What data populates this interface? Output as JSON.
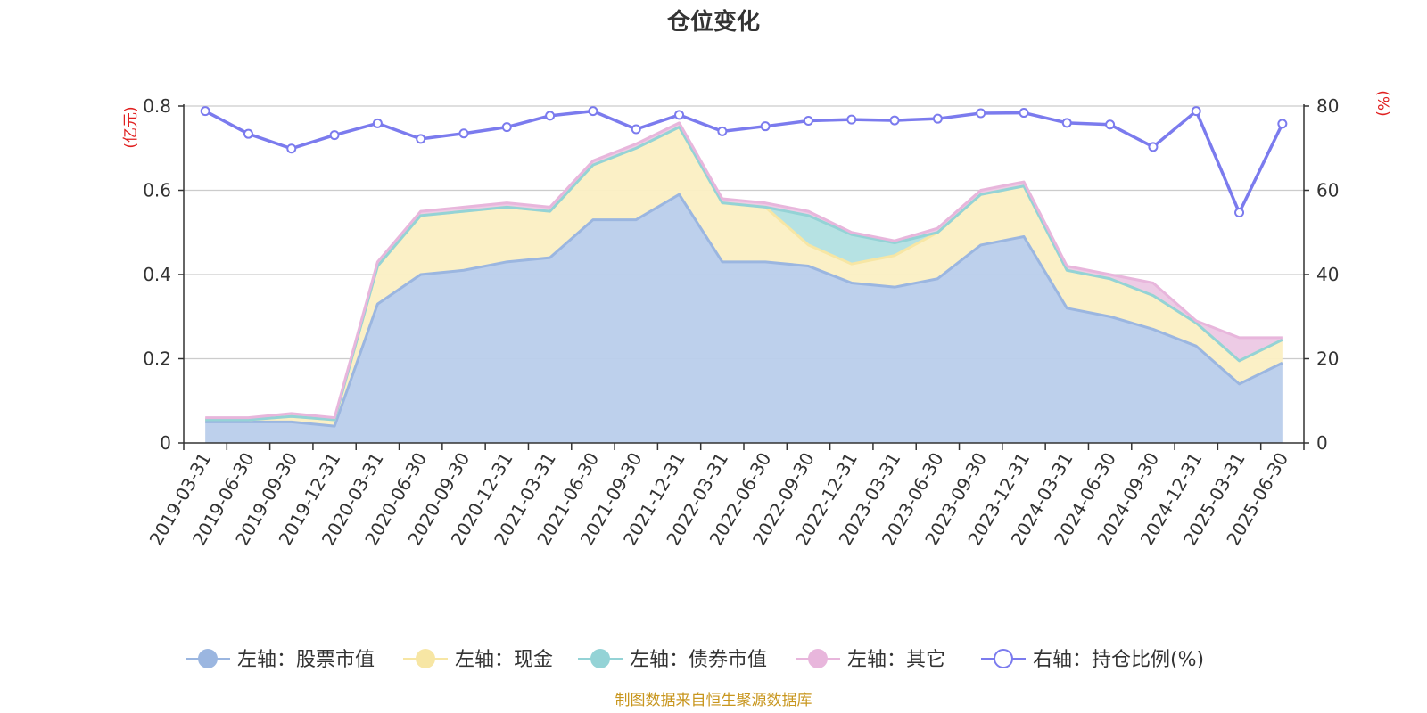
{
  "title": "仓位变化",
  "source": "制图数据来自恒生聚源数据库",
  "colors": {
    "stock": "#9bb6e0",
    "stock_fill": "#b9cdeb",
    "cash": "#f7e6a4",
    "cash_fill": "#fbefc3",
    "bond": "#94d3d6",
    "bond_fill": "#b2e0e2",
    "other": "#e8b6dc",
    "other_fill": "#ecc8e4",
    "ratio": "#7b7bee",
    "unit": "#e02020",
    "source": "#c8961e"
  },
  "chart_data": {
    "type": "area",
    "title": "仓位变化",
    "y_left": {
      "unit": "(亿元)",
      "range": [
        0,
        0.8
      ],
      "ticks": [
        "0",
        "0.2",
        "0.4",
        "0.6",
        "0.8"
      ]
    },
    "y_right": {
      "unit": "(%)",
      "range": [
        0,
        80
      ],
      "ticks": [
        "0",
        "20",
        "40",
        "60",
        "80"
      ]
    },
    "grid": true,
    "legend_position": "bottom",
    "categories": [
      "2019-03-31",
      "2019-06-30",
      "2019-09-30",
      "2019-12-31",
      "2020-03-31",
      "2020-06-30",
      "2020-09-30",
      "2020-12-31",
      "2021-03-31",
      "2021-06-30",
      "2021-09-30",
      "2021-12-31",
      "2022-03-31",
      "2022-06-30",
      "2022-09-30",
      "2022-12-31",
      "2023-03-31",
      "2023-06-30",
      "2023-09-30",
      "2023-12-31",
      "2024-03-31",
      "2024-06-30",
      "2024-09-30",
      "2024-12-31",
      "2025-03-31",
      "2025-06-30"
    ],
    "series": [
      {
        "name": "左轴：股票市值",
        "axis": "left",
        "stacked": true,
        "values": [
          0.05,
          0.05,
          0.05,
          0.04,
          0.33,
          0.4,
          0.41,
          0.43,
          0.44,
          0.53,
          0.53,
          0.59,
          0.43,
          0.43,
          0.42,
          0.38,
          0.37,
          0.39,
          0.47,
          0.49,
          0.32,
          0.3,
          0.27,
          0.23,
          0.14,
          0.19
        ]
      },
      {
        "name": "左轴：现金",
        "axis": "left",
        "stacked": true,
        "values": [
          0.005,
          0.005,
          0.013,
          0.015,
          0.09,
          0.14,
          0.14,
          0.13,
          0.11,
          0.13,
          0.17,
          0.16,
          0.14,
          0.13,
          0.05,
          0.045,
          0.075,
          0.11,
          0.12,
          0.12,
          0.09,
          0.09,
          0.08,
          0.055,
          0.055,
          0.055
        ]
      },
      {
        "name": "左轴：债券市值",
        "axis": "left",
        "stacked": true,
        "values": [
          0,
          0,
          0,
          0,
          0,
          0,
          0,
          0,
          0,
          0,
          0,
          0,
          0,
          0,
          0.07,
          0.07,
          0.03,
          0,
          0,
          0,
          0,
          0,
          0,
          0,
          0,
          0
        ]
      },
      {
        "name": "左轴：其它",
        "axis": "left",
        "stacked": true,
        "values": [
          0.005,
          0.005,
          0.007,
          0.005,
          0.01,
          0.01,
          0.01,
          0.01,
          0.01,
          0.01,
          0.01,
          0.01,
          0.01,
          0.01,
          0.01,
          0.005,
          0.005,
          0.01,
          0.01,
          0.01,
          0.01,
          0.01,
          0.03,
          0.005,
          0.055,
          0.005
        ]
      },
      {
        "name": "右轴：持仓比例(%)",
        "axis": "right",
        "type": "line",
        "values": [
          78.8,
          73.4,
          69.9,
          73.1,
          75.9,
          72.2,
          73.5,
          75.0,
          77.7,
          78.8,
          74.5,
          77.9,
          74.0,
          75.2,
          76.5,
          76.8,
          76.6,
          77.0,
          78.3,
          78.4,
          76.0,
          75.6,
          70.3,
          78.8,
          54.7,
          75.8
        ]
      }
    ]
  },
  "legend": [
    {
      "label": "左轴：股票市值",
      "color_key": "stock",
      "marker": "filled-circle"
    },
    {
      "label": "左轴：现金",
      "color_key": "cash",
      "marker": "filled-circle"
    },
    {
      "label": "左轴：债券市值",
      "color_key": "bond",
      "marker": "filled-circle"
    },
    {
      "label": "左轴：其它",
      "color_key": "other",
      "marker": "filled-circle"
    },
    {
      "label": "右轴：持仓比例(%)",
      "color_key": "ratio",
      "marker": "hollow-circle"
    }
  ]
}
